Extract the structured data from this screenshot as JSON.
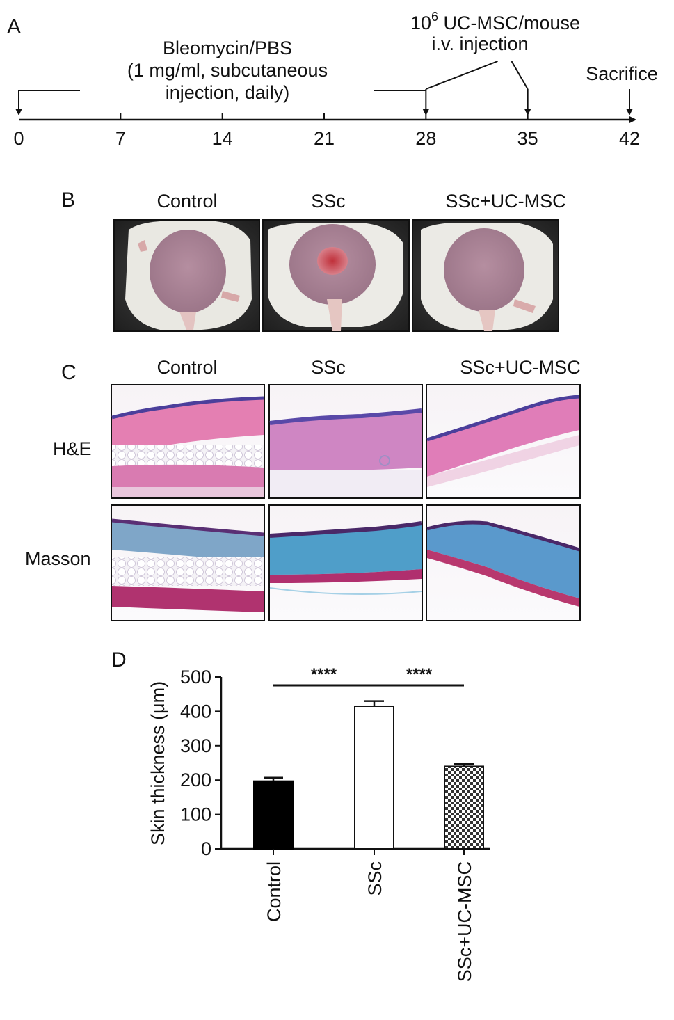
{
  "panel_a": {
    "letter": "A",
    "timeline": {
      "ticks": [
        0,
        7,
        14,
        21,
        28,
        35,
        42
      ],
      "range": [
        0,
        42
      ]
    },
    "bleomycin_label": [
      "Bleomycin/PBS",
      "(1 mg/ml, subcutaneous",
      "injection, daily)"
    ],
    "bleomycin_span": [
      0,
      28
    ],
    "msc_label_base": "10",
    "msc_label_sup": "6",
    "msc_label_rest": " UC-MSC/mouse",
    "msc_label_line2": "i.v. injection",
    "msc_days": [
      28,
      35
    ],
    "sacrifice_label": "Sacrifice",
    "sacrifice_day": 42
  },
  "panel_b": {
    "letter": "B",
    "groups": [
      "Control",
      "SSc",
      "SSc+UC-MSC"
    ],
    "photo_icons": [
      "mouse-back-photo",
      "mouse-back-photo",
      "mouse-back-photo"
    ]
  },
  "panel_c": {
    "letter": "C",
    "groups": [
      "Control",
      "SSc",
      "SSc+UC-MSC"
    ],
    "rows": [
      "H&E",
      "Masson"
    ]
  },
  "panel_d": {
    "letter": "D",
    "chart_data": {
      "type": "bar",
      "categories": [
        "Control",
        "SSc",
        "SSc+UC-MSC"
      ],
      "values": [
        197,
        415,
        240
      ],
      "errors": [
        10,
        15,
        7
      ],
      "ylabel": "Skin thickness (μm)",
      "ylim": [
        0,
        500
      ],
      "yticks": [
        0,
        100,
        200,
        300,
        400,
        500
      ],
      "bar_styles": [
        "solid-black",
        "white-outline",
        "checkered"
      ],
      "significance": [
        {
          "from": 0,
          "to": 1,
          "label": "****"
        },
        {
          "from": 1,
          "to": 2,
          "label": "****"
        }
      ]
    }
  }
}
